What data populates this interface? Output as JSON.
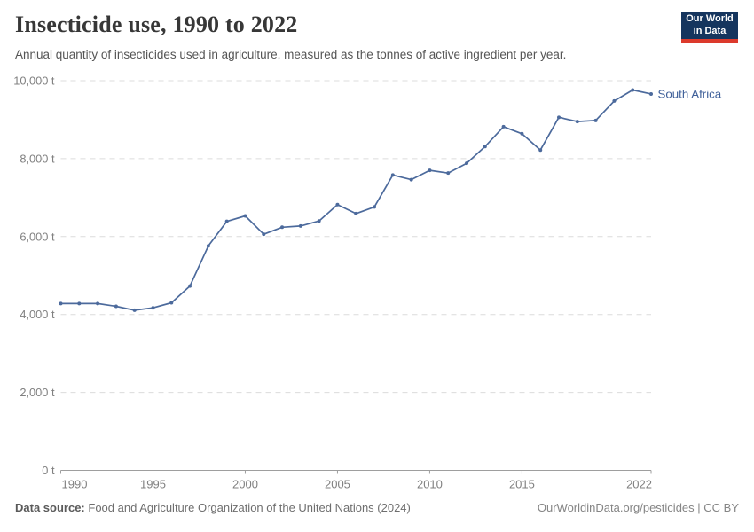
{
  "header": {
    "title": "Insecticide use, 1990 to 2022",
    "subtitle": "Annual quantity of insecticides used in agriculture, measured as the tonnes of active ingredient per year."
  },
  "logo": {
    "line1": "Our World",
    "line2": "in Data",
    "bg_color": "#15355e",
    "bar_color": "#dc3a2c"
  },
  "chart_data": {
    "type": "line",
    "title": "Insecticide use, 1990 to 2022",
    "xlabel": "",
    "ylabel": "tonnes of active ingredient",
    "xlim": [
      1990,
      2022
    ],
    "ylim": [
      0,
      10000
    ],
    "x_ticks": [
      1990,
      1995,
      2000,
      2005,
      2010,
      2015,
      2022
    ],
    "y_ticks": [
      0,
      2000,
      4000,
      6000,
      8000,
      10000
    ],
    "y_tick_suffix": " t",
    "grid": "horizontal-dashed",
    "legend_position": "end-of-line-label",
    "x": [
      1990,
      1991,
      1992,
      1993,
      1994,
      1995,
      1996,
      1997,
      1998,
      1999,
      2000,
      2001,
      2002,
      2003,
      2004,
      2005,
      2006,
      2007,
      2008,
      2009,
      2010,
      2011,
      2012,
      2013,
      2014,
      2015,
      2016,
      2017,
      2018,
      2019,
      2020,
      2021,
      2022
    ],
    "series": [
      {
        "name": "South Africa",
        "color": "#4c6a9c",
        "label_color": "#3e5f99",
        "values": [
          4280,
          4280,
          4280,
          4210,
          4110,
          4170,
          4300,
          4730,
          5760,
          6390,
          6530,
          6060,
          6240,
          6270,
          6400,
          6820,
          6590,
          6760,
          7580,
          7460,
          7700,
          7630,
          7880,
          8310,
          8820,
          8640,
          8220,
          9060,
          8950,
          8980,
          9480,
          9760,
          9660
        ]
      }
    ],
    "colors": {
      "grid": "#dcdcdc",
      "axis": "#9e9e9e",
      "tick_text": "#808080"
    }
  },
  "footer": {
    "data_source_label": "Data source:",
    "data_source_text": "Food and Agriculture Organization of the United Nations (2024)",
    "attribution": "OurWorldinData.org/pesticides | CC BY"
  }
}
